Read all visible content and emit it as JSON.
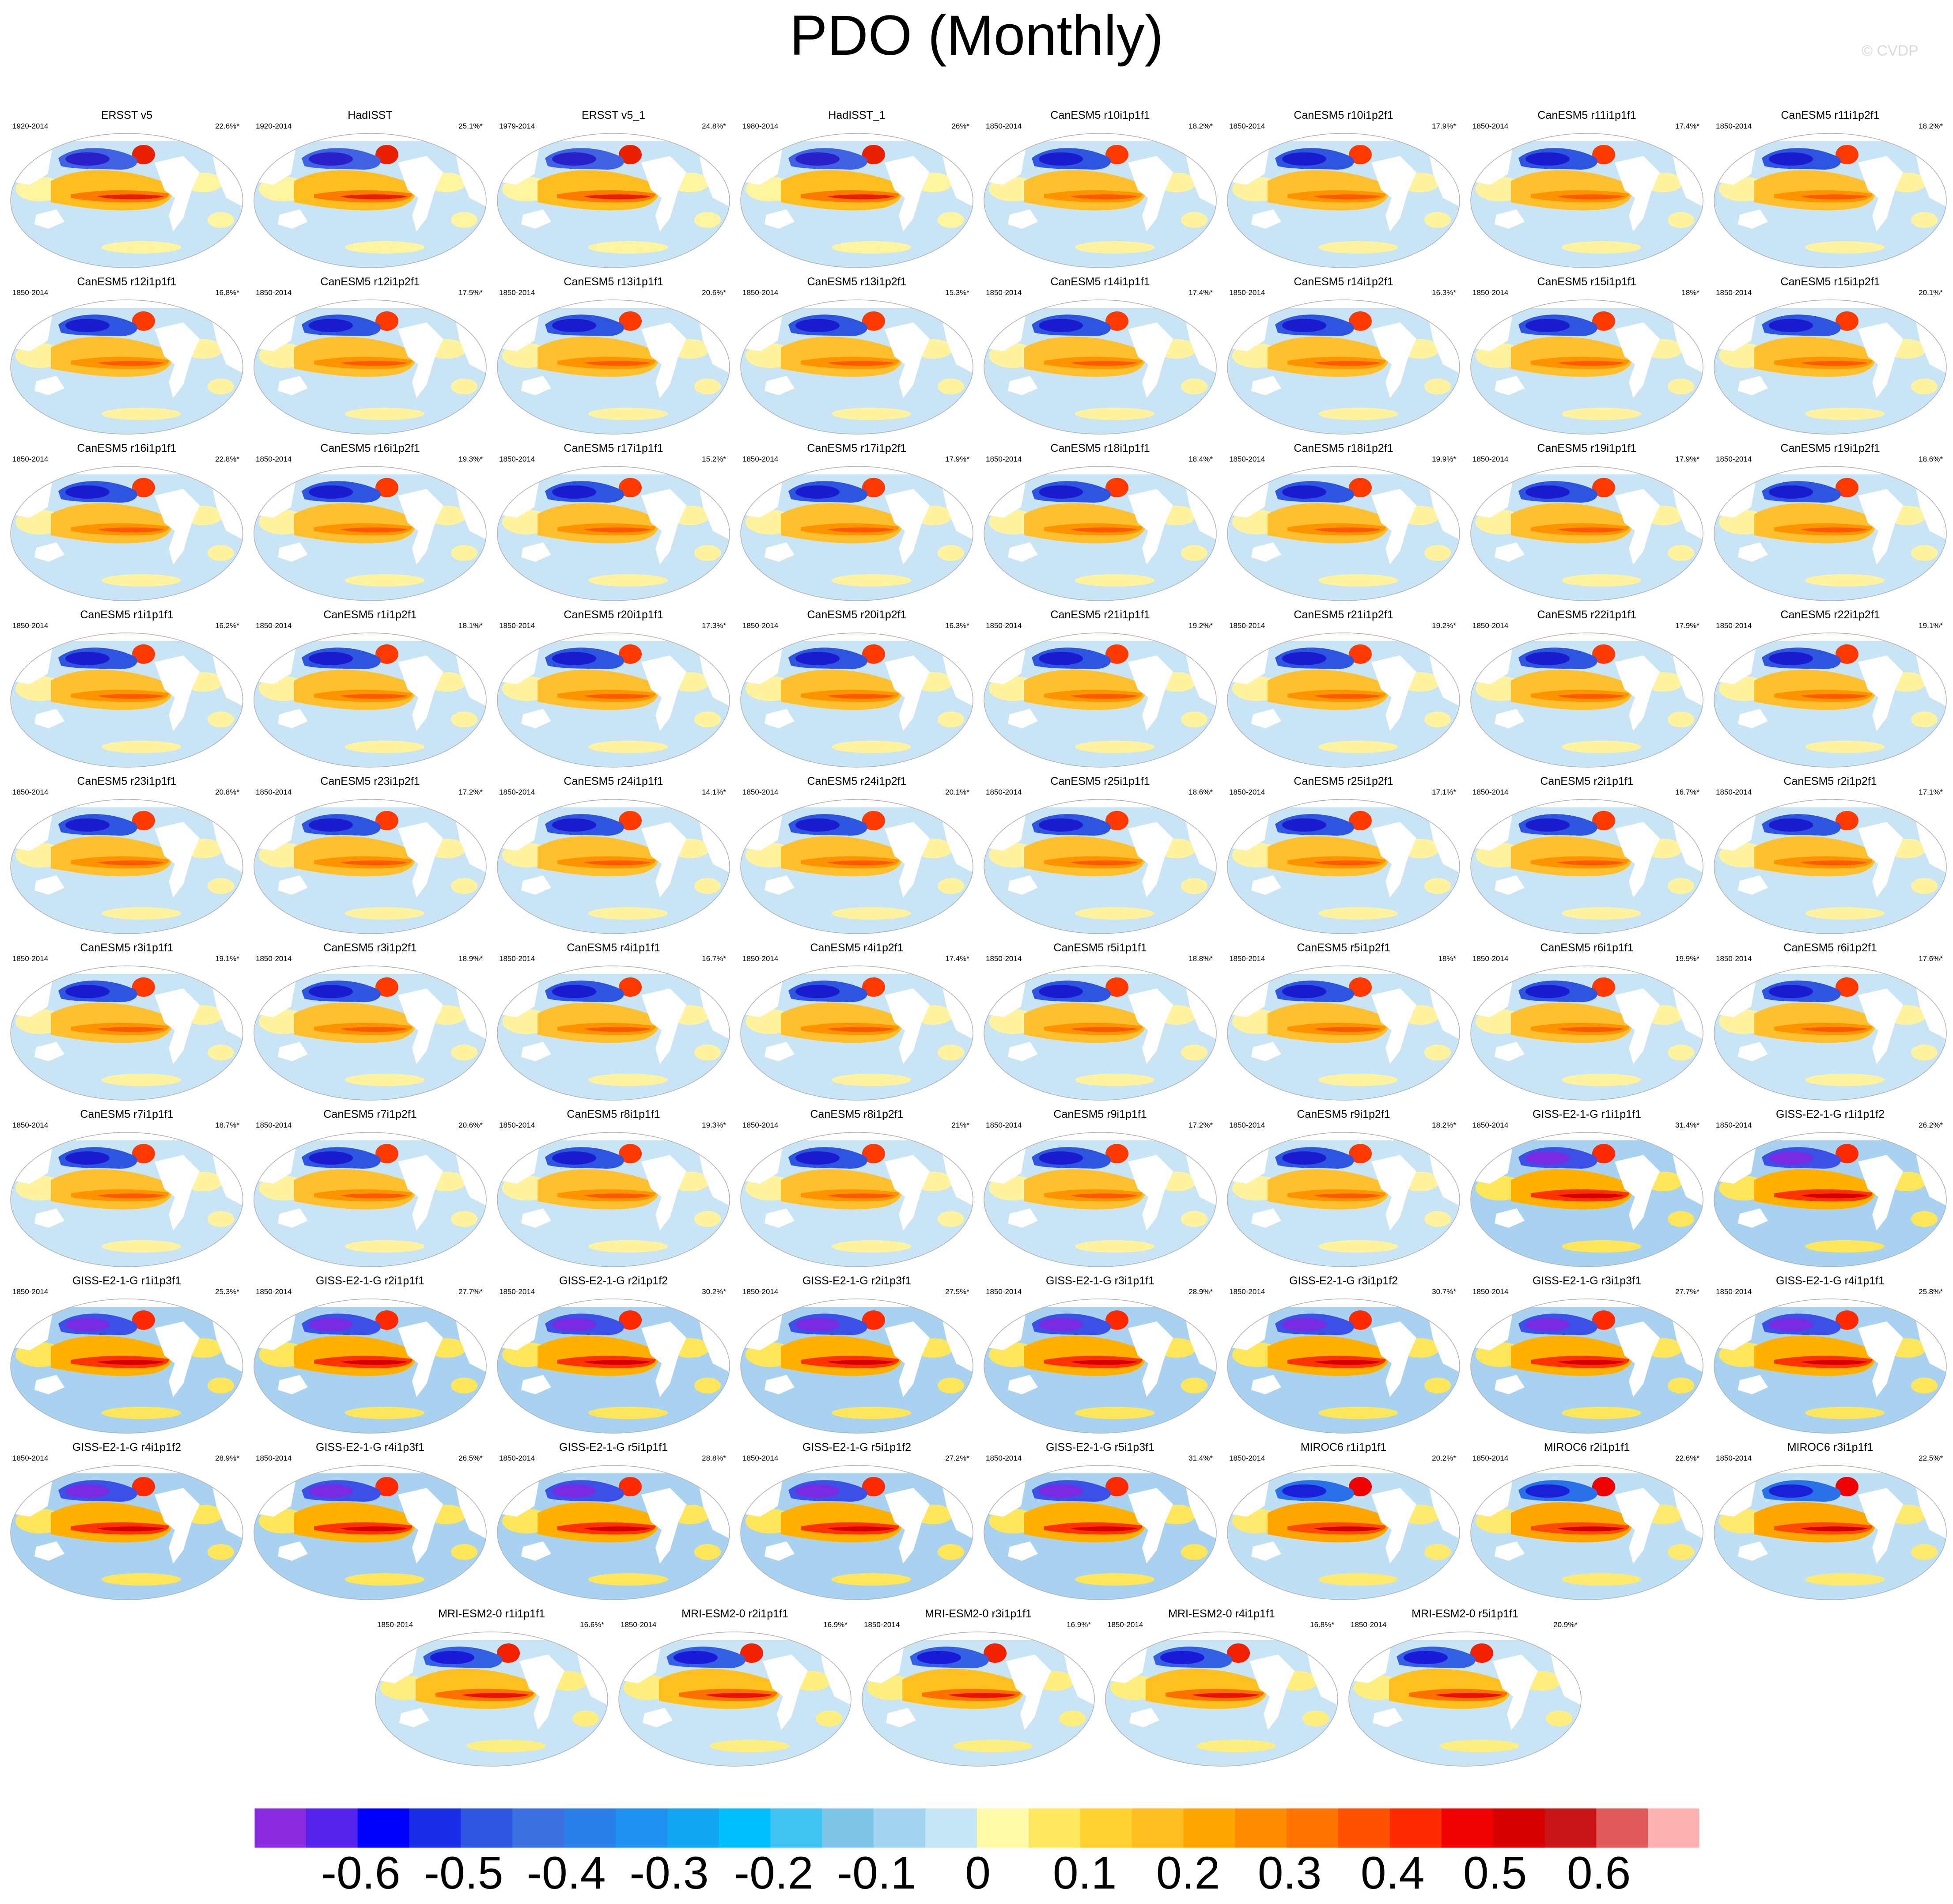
{
  "title": "PDO (Monthly)",
  "credit": "© CVDP",
  "panel_rows": [
    [
      {
        "name": "ERSST v5",
        "period": "1920-2014",
        "pct": "22.6%*",
        "style": "obs"
      },
      {
        "name": "HadISST",
        "period": "1920-2014",
        "pct": "25.1%*",
        "style": "obs"
      },
      {
        "name": "ERSST v5_1",
        "period": "1979-2014",
        "pct": "24.8%*",
        "style": "obs"
      },
      {
        "name": "HadISST_1",
        "period": "1980-2014",
        "pct": "26%*",
        "style": "obs"
      },
      {
        "name": "CanESM5 r10i1p1f1",
        "period": "1850-2014",
        "pct": "18.2%*",
        "style": "canesm"
      },
      {
        "name": "CanESM5 r10i1p2f1",
        "period": "1850-2014",
        "pct": "17.9%*",
        "style": "canesm"
      },
      {
        "name": "CanESM5 r11i1p1f1",
        "period": "1850-2014",
        "pct": "17.4%*",
        "style": "canesm"
      },
      {
        "name": "CanESM5 r11i1p2f1",
        "period": "1850-2014",
        "pct": "18.2%*",
        "style": "canesm"
      }
    ],
    [
      {
        "name": "CanESM5 r12i1p1f1",
        "period": "1850-2014",
        "pct": "16.8%*",
        "style": "canesm"
      },
      {
        "name": "CanESM5 r12i1p2f1",
        "period": "1850-2014",
        "pct": "17.5%*",
        "style": "canesm"
      },
      {
        "name": "CanESM5 r13i1p1f1",
        "period": "1850-2014",
        "pct": "20.6%*",
        "style": "canesm"
      },
      {
        "name": "CanESM5 r13i1p2f1",
        "period": "1850-2014",
        "pct": "15.3%*",
        "style": "canesm"
      },
      {
        "name": "CanESM5 r14i1p1f1",
        "period": "1850-2014",
        "pct": "17.4%*",
        "style": "canesm"
      },
      {
        "name": "CanESM5 r14i1p2f1",
        "period": "1850-2014",
        "pct": "16.3%*",
        "style": "canesm"
      },
      {
        "name": "CanESM5 r15i1p1f1",
        "period": "1850-2014",
        "pct": "18%*",
        "style": "canesm"
      },
      {
        "name": "CanESM5 r15i1p2f1",
        "period": "1850-2014",
        "pct": "20.1%*",
        "style": "canesm"
      }
    ],
    [
      {
        "name": "CanESM5 r16i1p1f1",
        "period": "1850-2014",
        "pct": "22.8%*",
        "style": "canesm"
      },
      {
        "name": "CanESM5 r16i1p2f1",
        "period": "1850-2014",
        "pct": "19.3%*",
        "style": "canesm"
      },
      {
        "name": "CanESM5 r17i1p1f1",
        "period": "1850-2014",
        "pct": "15.2%*",
        "style": "canesm"
      },
      {
        "name": "CanESM5 r17i1p2f1",
        "period": "1850-2014",
        "pct": "17.9%*",
        "style": "canesm"
      },
      {
        "name": "CanESM5 r18i1p1f1",
        "period": "1850-2014",
        "pct": "18.4%*",
        "style": "canesm"
      },
      {
        "name": "CanESM5 r18i1p2f1",
        "period": "1850-2014",
        "pct": "19.9%*",
        "style": "canesm"
      },
      {
        "name": "CanESM5 r19i1p1f1",
        "period": "1850-2014",
        "pct": "17.9%*",
        "style": "canesm"
      },
      {
        "name": "CanESM5 r19i1p2f1",
        "period": "1850-2014",
        "pct": "18.6%*",
        "style": "canesm"
      }
    ],
    [
      {
        "name": "CanESM5 r1i1p1f1",
        "period": "1850-2014",
        "pct": "16.2%*",
        "style": "canesm"
      },
      {
        "name": "CanESM5 r1i1p2f1",
        "period": "1850-2014",
        "pct": "18.1%*",
        "style": "canesm"
      },
      {
        "name": "CanESM5 r20i1p1f1",
        "period": "1850-2014",
        "pct": "17.3%*",
        "style": "canesm"
      },
      {
        "name": "CanESM5 r20i1p2f1",
        "period": "1850-2014",
        "pct": "16.3%*",
        "style": "canesm"
      },
      {
        "name": "CanESM5 r21i1p1f1",
        "period": "1850-2014",
        "pct": "19.2%*",
        "style": "canesm"
      },
      {
        "name": "CanESM5 r21i1p2f1",
        "period": "1850-2014",
        "pct": "19.2%*",
        "style": "canesm"
      },
      {
        "name": "CanESM5 r22i1p1f1",
        "period": "1850-2014",
        "pct": "17.9%*",
        "style": "canesm"
      },
      {
        "name": "CanESM5 r22i1p2f1",
        "period": "1850-2014",
        "pct": "19.1%*",
        "style": "canesm"
      }
    ],
    [
      {
        "name": "CanESM5 r23i1p1f1",
        "period": "1850-2014",
        "pct": "20.8%*",
        "style": "canesm"
      },
      {
        "name": "CanESM5 r23i1p2f1",
        "period": "1850-2014",
        "pct": "17.2%*",
        "style": "canesm"
      },
      {
        "name": "CanESM5 r24i1p1f1",
        "period": "1850-2014",
        "pct": "14.1%*",
        "style": "canesm"
      },
      {
        "name": "CanESM5 r24i1p2f1",
        "period": "1850-2014",
        "pct": "20.1%*",
        "style": "canesm"
      },
      {
        "name": "CanESM5 r25i1p1f1",
        "period": "1850-2014",
        "pct": "18.6%*",
        "style": "canesm"
      },
      {
        "name": "CanESM5 r25i1p2f1",
        "period": "1850-2014",
        "pct": "17.1%*",
        "style": "canesm"
      },
      {
        "name": "CanESM5 r2i1p1f1",
        "period": "1850-2014",
        "pct": "16.7%*",
        "style": "canesm"
      },
      {
        "name": "CanESM5 r2i1p2f1",
        "period": "1850-2014",
        "pct": "17.1%*",
        "style": "canesm"
      }
    ],
    [
      {
        "name": "CanESM5 r3i1p1f1",
        "period": "1850-2014",
        "pct": "19.1%*",
        "style": "canesm"
      },
      {
        "name": "CanESM5 r3i1p2f1",
        "period": "1850-2014",
        "pct": "18.9%*",
        "style": "canesm"
      },
      {
        "name": "CanESM5 r4i1p1f1",
        "period": "1850-2014",
        "pct": "16.7%*",
        "style": "canesm"
      },
      {
        "name": "CanESM5 r4i1p2f1",
        "period": "1850-2014",
        "pct": "17.4%*",
        "style": "canesm"
      },
      {
        "name": "CanESM5 r5i1p1f1",
        "period": "1850-2014",
        "pct": "18.8%*",
        "style": "canesm"
      },
      {
        "name": "CanESM5 r5i1p2f1",
        "period": "1850-2014",
        "pct": "18%*",
        "style": "canesm"
      },
      {
        "name": "CanESM5 r6i1p1f1",
        "period": "1850-2014",
        "pct": "19.9%*",
        "style": "canesm"
      },
      {
        "name": "CanESM5 r6i1p2f1",
        "period": "1850-2014",
        "pct": "17.6%*",
        "style": "canesm"
      }
    ],
    [
      {
        "name": "CanESM5 r7i1p1f1",
        "period": "1850-2014",
        "pct": "18.7%*",
        "style": "canesm"
      },
      {
        "name": "CanESM5 r7i1p2f1",
        "period": "1850-2014",
        "pct": "20.6%*",
        "style": "canesm"
      },
      {
        "name": "CanESM5 r8i1p1f1",
        "period": "1850-2014",
        "pct": "19.3%*",
        "style": "canesm"
      },
      {
        "name": "CanESM5 r8i1p2f1",
        "period": "1850-2014",
        "pct": "21%*",
        "style": "canesm"
      },
      {
        "name": "CanESM5 r9i1p1f1",
        "period": "1850-2014",
        "pct": "17.2%*",
        "style": "canesm"
      },
      {
        "name": "CanESM5 r9i1p2f1",
        "period": "1850-2014",
        "pct": "18.2%*",
        "style": "canesm"
      },
      {
        "name": "GISS-E2-1-G r1i1p1f1",
        "period": "1850-2014",
        "pct": "31.4%*",
        "style": "giss"
      },
      {
        "name": "GISS-E2-1-G r1i1p1f2",
        "period": "1850-2014",
        "pct": "26.2%*",
        "style": "giss"
      }
    ],
    [
      {
        "name": "GISS-E2-1-G r1i1p3f1",
        "period": "1850-2014",
        "pct": "25.3%*",
        "style": "giss"
      },
      {
        "name": "GISS-E2-1-G r2i1p1f1",
        "period": "1850-2014",
        "pct": "27.7%*",
        "style": "giss"
      },
      {
        "name": "GISS-E2-1-G r2i1p1f2",
        "period": "1850-2014",
        "pct": "30.2%*",
        "style": "giss"
      },
      {
        "name": "GISS-E2-1-G r2i1p3f1",
        "period": "1850-2014",
        "pct": "27.5%*",
        "style": "giss"
      },
      {
        "name": "GISS-E2-1-G r3i1p1f1",
        "period": "1850-2014",
        "pct": "28.9%*",
        "style": "giss"
      },
      {
        "name": "GISS-E2-1-G r3i1p1f2",
        "period": "1850-2014",
        "pct": "30.7%*",
        "style": "giss"
      },
      {
        "name": "GISS-E2-1-G r3i1p3f1",
        "period": "1850-2014",
        "pct": "27.7%*",
        "style": "giss"
      },
      {
        "name": "GISS-E2-1-G r4i1p1f1",
        "period": "1850-2014",
        "pct": "25.8%*",
        "style": "giss"
      }
    ],
    [
      {
        "name": "GISS-E2-1-G r4i1p1f2",
        "period": "1850-2014",
        "pct": "28.9%*",
        "style": "giss"
      },
      {
        "name": "GISS-E2-1-G r4i1p3f1",
        "period": "1850-2014",
        "pct": "26.5%*",
        "style": "giss"
      },
      {
        "name": "GISS-E2-1-G r5i1p1f1",
        "period": "1850-2014",
        "pct": "28.8%*",
        "style": "giss"
      },
      {
        "name": "GISS-E2-1-G r5i1p1f2",
        "period": "1850-2014",
        "pct": "27.2%*",
        "style": "giss"
      },
      {
        "name": "GISS-E2-1-G r5i1p3f1",
        "period": "1850-2014",
        "pct": "31.4%*",
        "style": "giss"
      },
      {
        "name": "MIROC6 r1i1p1f1",
        "period": "1850-2014",
        "pct": "20.2%*",
        "style": "miroc"
      },
      {
        "name": "MIROC6 r2i1p1f1",
        "period": "1850-2014",
        "pct": "22.6%*",
        "style": "miroc"
      },
      {
        "name": "MIROC6 r3i1p1f1",
        "period": "1850-2014",
        "pct": "22.5%*",
        "style": "miroc"
      }
    ],
    [
      {
        "name": "MRI-ESM2-0 r1i1p1f1",
        "period": "1850-2014",
        "pct": "16.6%*",
        "style": "mri"
      },
      {
        "name": "MRI-ESM2-0 r2i1p1f1",
        "period": "1850-2014",
        "pct": "16.9%*",
        "style": "mri"
      },
      {
        "name": "MRI-ESM2-0 r3i1p1f1",
        "period": "1850-2014",
        "pct": "16.9%*",
        "style": "mri"
      },
      {
        "name": "MRI-ESM2-0 r4i1p1f1",
        "period": "1850-2014",
        "pct": "16.8%*",
        "style": "mri"
      },
      {
        "name": "MRI-ESM2-0 r5i1p1f1",
        "period": "1850-2014",
        "pct": "20.9%*",
        "style": "mri"
      }
    ]
  ],
  "colorbar": {
    "colors": [
      "#8a2be2",
      "#5522ee",
      "#0000ff",
      "#1a2ee8",
      "#2e55e0",
      "#3c70e0",
      "#2a80e8",
      "#1e90f0",
      "#12a6f2",
      "#00bfff",
      "#40c2f2",
      "#7ec5ea",
      "#a5d4f0",
      "#c6e6f6",
      "#fffaa8",
      "#ffe860",
      "#ffd232",
      "#ffbe20",
      "#ffa500",
      "#ff8c00",
      "#ff7300",
      "#ff5000",
      "#ff2a00",
      "#f00000",
      "#d60000",
      "#c81414",
      "#e05a5a",
      "#ffb0b0"
    ],
    "labels": [
      "-0.6",
      "-0.5",
      "-0.4",
      "-0.3",
      "-0.2",
      "-0.1",
      "0",
      "0.1",
      "0.2",
      "0.3",
      "0.4",
      "0.5",
      "0.6"
    ]
  }
}
